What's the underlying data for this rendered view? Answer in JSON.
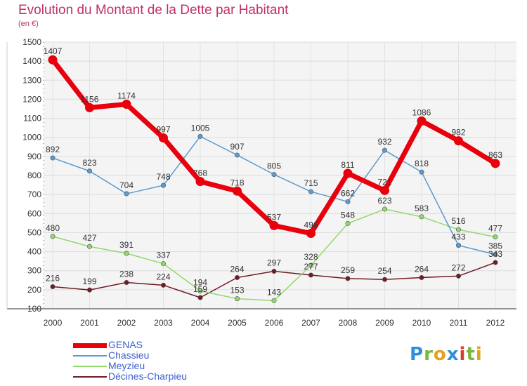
{
  "header": {
    "title": "Evolution du Montant de la Dette par Habitant",
    "unit": "(en €)"
  },
  "logo": {
    "text": "Proxiti",
    "letters": [
      {
        "ch": "P",
        "color": "#2f8fd8"
      },
      {
        "ch": "r",
        "color": "#7ab83a"
      },
      {
        "ch": "o",
        "color": "#e3a21a"
      },
      {
        "ch": "x",
        "color": "#2f8fd8"
      },
      {
        "ch": "i",
        "color": "#d93d2a"
      },
      {
        "ch": "t",
        "color": "#7ab83a"
      },
      {
        "ch": "i",
        "color": "#e3a21a"
      }
    ]
  },
  "chart_data": {
    "type": "line",
    "title": "Evolution du Montant de la Dette par Habitant",
    "ylabel": "(en €)",
    "xlabel": "",
    "ylim": [
      100,
      1500
    ],
    "yticks": [
      100,
      200,
      300,
      400,
      500,
      600,
      700,
      800,
      900,
      1000,
      1100,
      1200,
      1300,
      1400,
      1500
    ],
    "categories": [
      "2000",
      "2001",
      "2002",
      "2003",
      "2004",
      "2005",
      "2006",
      "2007",
      "2008",
      "2009",
      "2010",
      "2011",
      "2012"
    ],
    "grid": true,
    "legend_position": "bottom-left",
    "series": [
      {
        "name": "GENAS",
        "color": "#e8000d",
        "values": [
          1407,
          1156,
          1174,
          997,
          768,
          718,
          537,
          496,
          811,
          721,
          1086,
          982,
          863
        ]
      },
      {
        "name": "Chassieu",
        "color": "#5b9bd0",
        "values": [
          892,
          823,
          704,
          748,
          1005,
          907,
          805,
          715,
          662,
          932,
          818,
          433,
          385
        ]
      },
      {
        "name": "Meyzieu",
        "color": "#92d96a",
        "values": [
          480,
          427,
          391,
          337,
          194,
          153,
          143,
          328,
          548,
          623,
          583,
          516,
          477
        ]
      },
      {
        "name": "Décines-Charpieu",
        "color": "#6e1c24",
        "values": [
          216,
          199,
          238,
          224,
          159,
          264,
          297,
          277,
          259,
          254,
          264,
          272,
          343
        ]
      }
    ]
  }
}
